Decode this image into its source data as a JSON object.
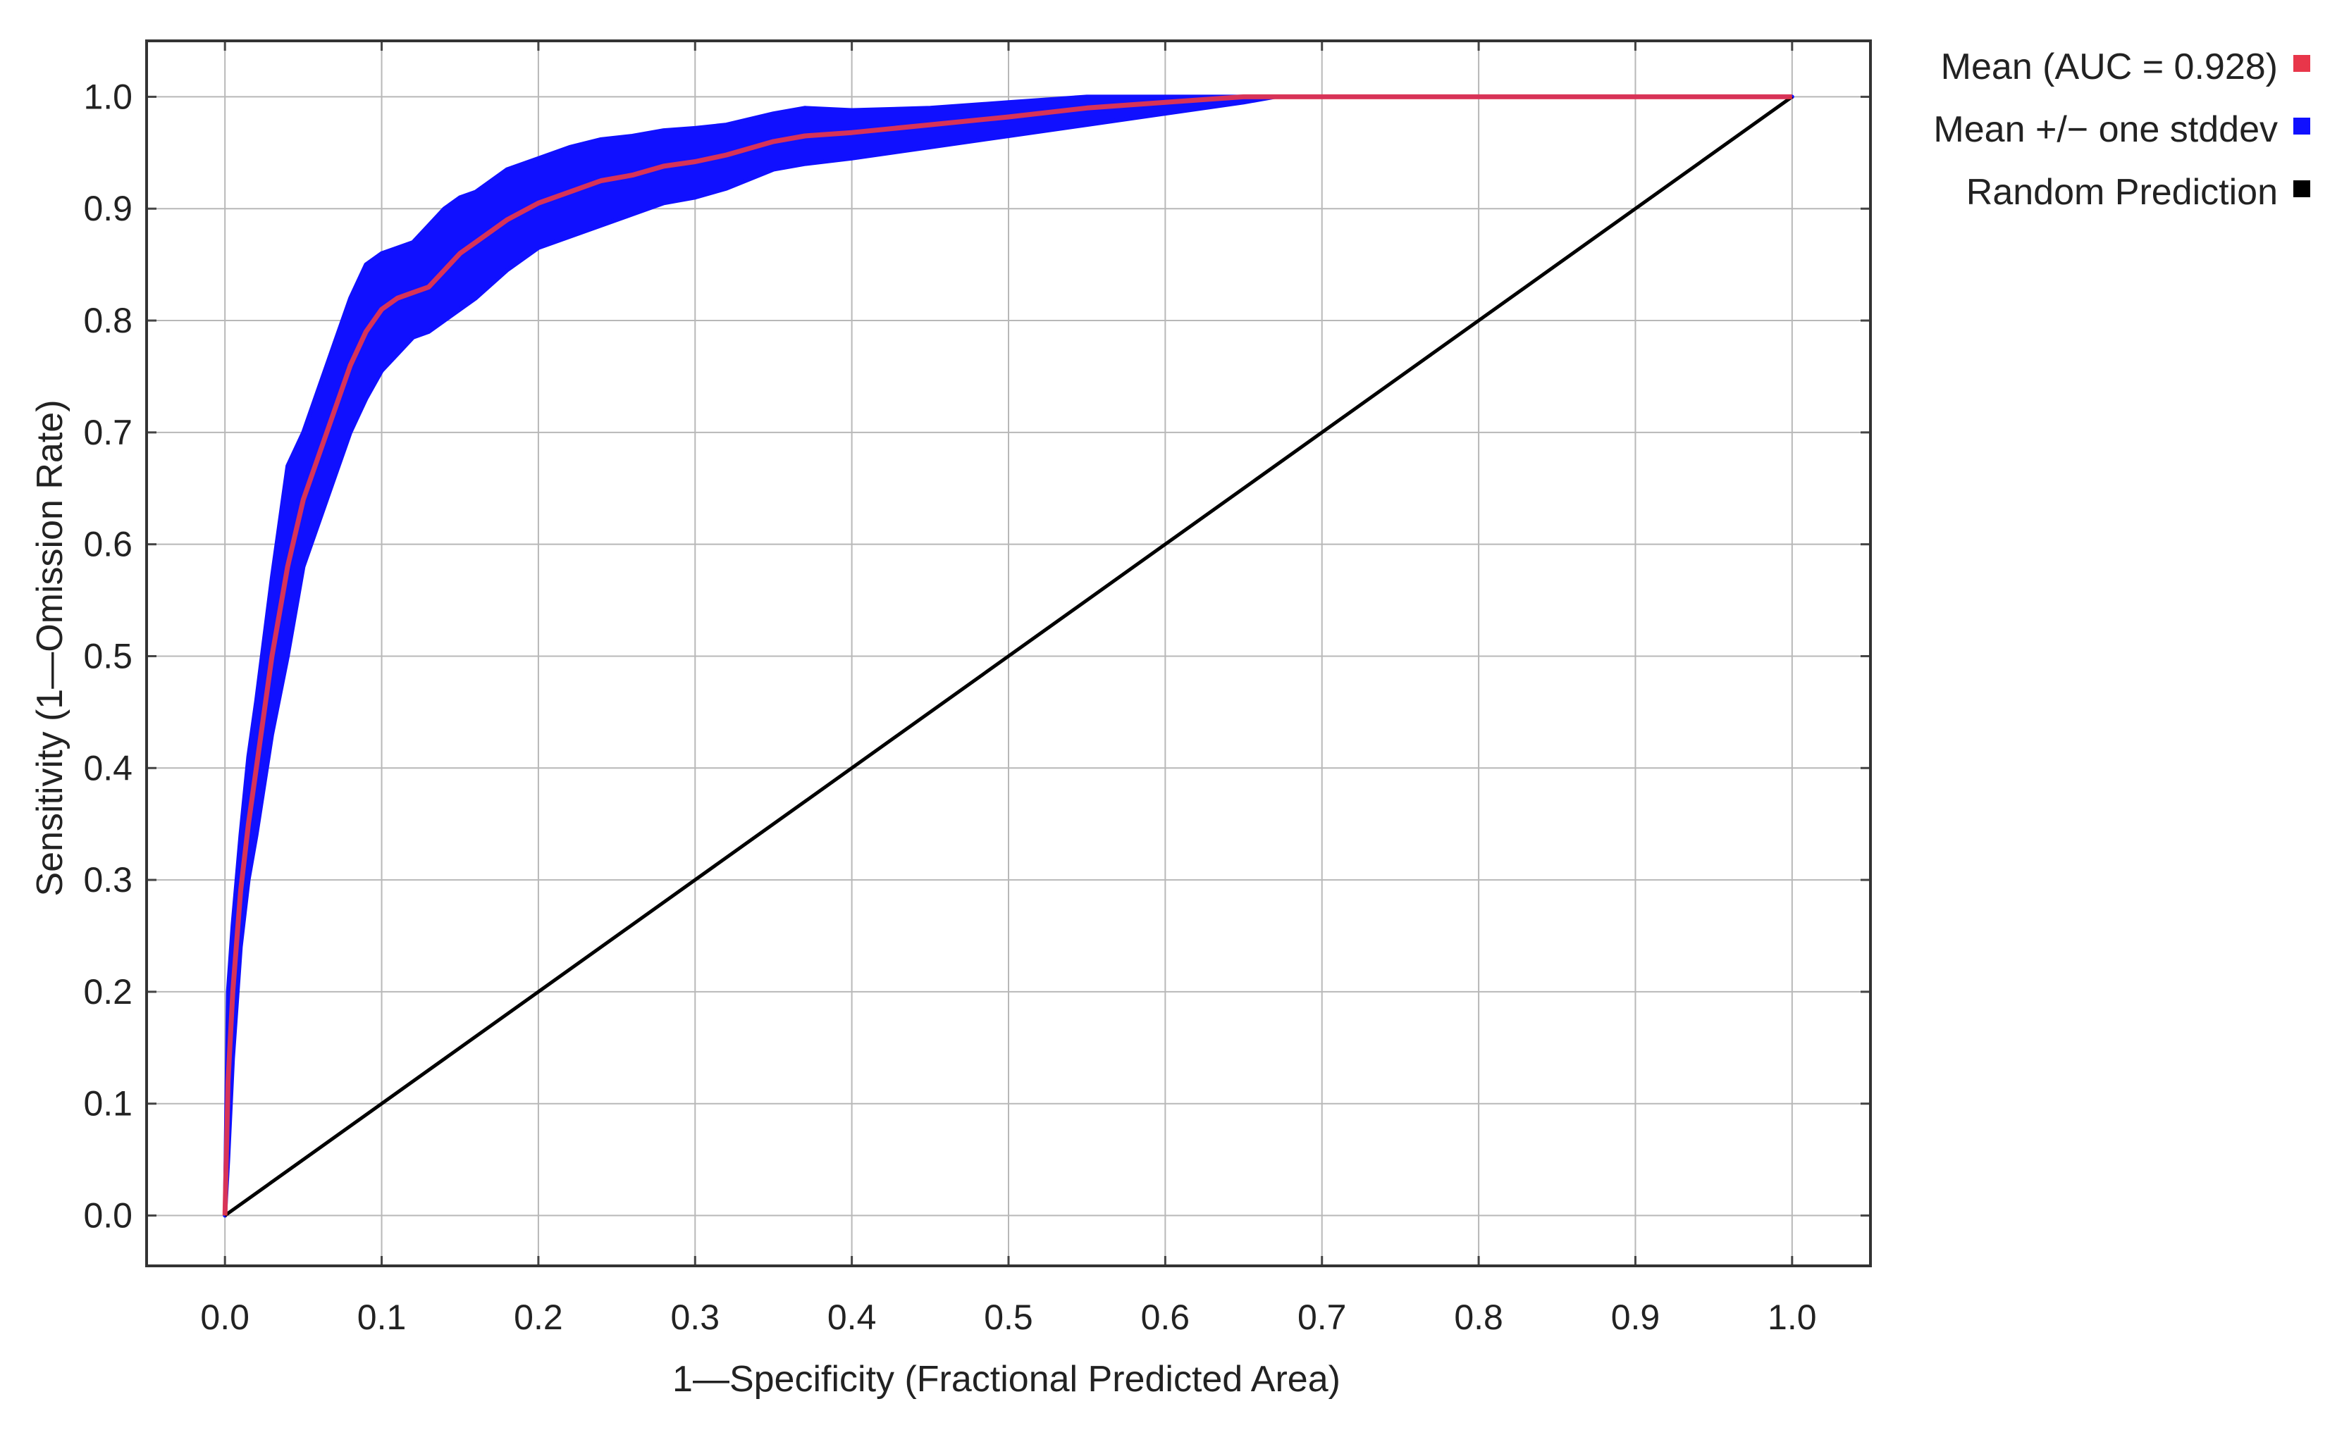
{
  "chart_data": {
    "type": "line",
    "title": "",
    "xlabel": "1—Specificity (Fractional Predicted Area)",
    "ylabel": "Sensitivity (1—Omission Rate)",
    "xlim": [
      -0.05,
      1.05
    ],
    "ylim": [
      -0.045,
      1.05
    ],
    "xticks": [
      0.0,
      0.1,
      0.2,
      0.3,
      0.4,
      0.5,
      0.6,
      0.7,
      0.8,
      0.9,
      1.0
    ],
    "xtick_labels": [
      "0.0",
      "0.1",
      "0.2",
      "0.3",
      "0.4",
      "0.5",
      "0.6",
      "0.7",
      "0.8",
      "0.9",
      "1.0"
    ],
    "yticks": [
      0.0,
      0.1,
      0.2,
      0.3,
      0.4,
      0.5,
      0.6,
      0.7,
      0.8,
      0.9,
      1.0
    ],
    "ytick_labels": [
      "0.0",
      "0.1",
      "0.2",
      "0.3",
      "0.4",
      "0.5",
      "0.6",
      "0.7",
      "0.8",
      "0.9",
      "1.0"
    ],
    "grid": true,
    "legend_position": "right",
    "series": [
      {
        "name": "Mean (AUC = 0.928)",
        "color": "#e8364a",
        "x": [
          0.0,
          0.002,
          0.005,
          0.01,
          0.015,
          0.02,
          0.03,
          0.04,
          0.05,
          0.06,
          0.07,
          0.08,
          0.09,
          0.1,
          0.11,
          0.12,
          0.13,
          0.14,
          0.15,
          0.16,
          0.18,
          0.2,
          0.22,
          0.24,
          0.26,
          0.28,
          0.3,
          0.32,
          0.35,
          0.37,
          0.4,
          0.45,
          0.5,
          0.55,
          0.6,
          0.65,
          0.67,
          0.7,
          0.8,
          0.9,
          1.0
        ],
        "y": [
          0.0,
          0.12,
          0.2,
          0.29,
          0.35,
          0.4,
          0.5,
          0.58,
          0.64,
          0.68,
          0.72,
          0.76,
          0.79,
          0.81,
          0.82,
          0.825,
          0.83,
          0.845,
          0.86,
          0.87,
          0.89,
          0.905,
          0.915,
          0.925,
          0.93,
          0.938,
          0.942,
          0.948,
          0.96,
          0.965,
          0.968,
          0.975,
          0.982,
          0.99,
          0.995,
          1.0,
          1.0,
          1.0,
          1.0,
          1.0,
          1.0
        ]
      },
      {
        "name": "Mean +/− one stddev",
        "color": "#1010ff",
        "x": [
          0.0,
          0.002,
          0.005,
          0.01,
          0.015,
          0.02,
          0.03,
          0.04,
          0.05,
          0.06,
          0.07,
          0.08,
          0.09,
          0.1,
          0.11,
          0.12,
          0.13,
          0.14,
          0.15,
          0.16,
          0.18,
          0.2,
          0.22,
          0.24,
          0.26,
          0.28,
          0.3,
          0.32,
          0.35,
          0.37,
          0.4,
          0.45,
          0.5,
          0.55,
          0.6,
          0.65,
          0.67,
          0.7,
          0.8,
          0.9,
          1.0
        ],
        "upper": [
          0.0,
          0.2,
          0.26,
          0.34,
          0.41,
          0.46,
          0.57,
          0.67,
          0.7,
          0.74,
          0.78,
          0.82,
          0.85,
          0.86,
          0.865,
          0.87,
          0.885,
          0.9,
          0.91,
          0.915,
          0.935,
          0.945,
          0.955,
          0.962,
          0.965,
          0.97,
          0.972,
          0.975,
          0.985,
          0.99,
          0.988,
          0.99,
          0.995,
          1.0,
          1.0,
          1.0,
          1.0,
          1.0,
          1.0,
          1.0,
          1.0
        ],
        "lower": [
          0.0,
          0.05,
          0.14,
          0.24,
          0.3,
          0.34,
          0.43,
          0.5,
          0.58,
          0.62,
          0.66,
          0.7,
          0.73,
          0.755,
          0.77,
          0.785,
          0.79,
          0.8,
          0.81,
          0.82,
          0.845,
          0.865,
          0.875,
          0.885,
          0.895,
          0.905,
          0.91,
          0.918,
          0.935,
          0.94,
          0.945,
          0.955,
          0.965,
          0.975,
          0.985,
          0.995,
          1.0,
          1.0,
          1.0,
          1.0,
          1.0
        ]
      },
      {
        "name": "Random Prediction",
        "color": "#000000",
        "x": [
          0.0,
          1.0
        ],
        "y": [
          0.0,
          1.0
        ]
      }
    ]
  }
}
